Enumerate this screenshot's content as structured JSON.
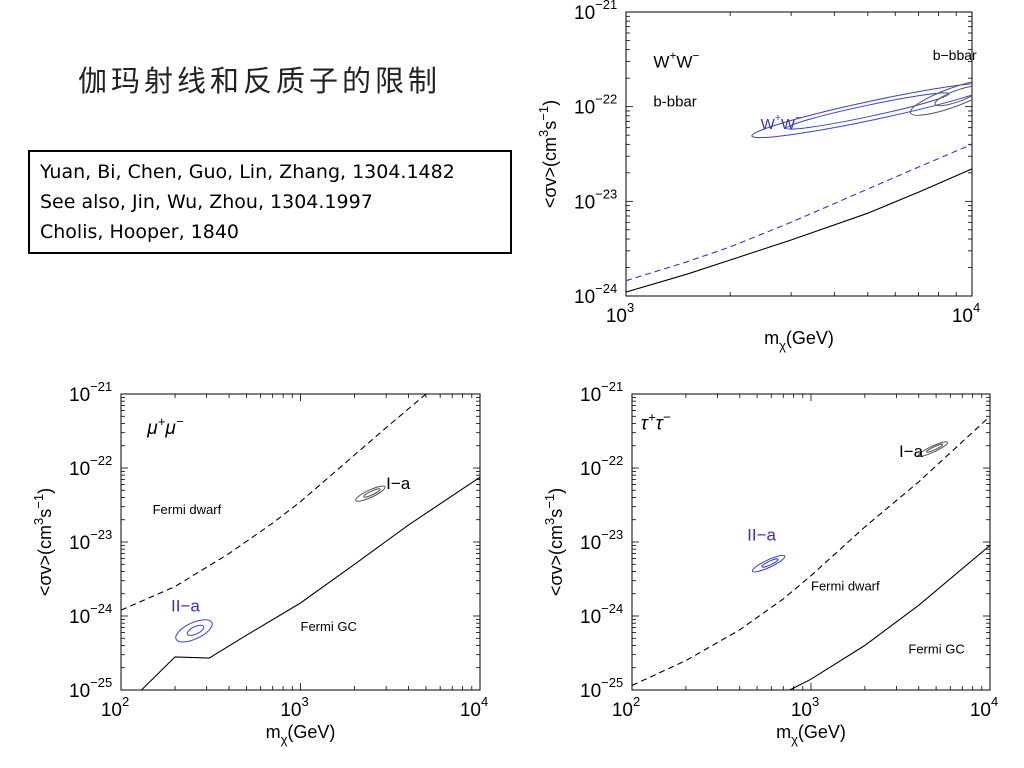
{
  "slide": {
    "title": "伽玛射线和反质子的限制",
    "references": [
      "Yuan, Bi, Chen, Guo, Lin, Zhang, 1304.1482",
      "See also, Jin, Wu, Zhou, 1304.1997",
      "Cholis, Hooper,  1840"
    ]
  },
  "chart_data": [
    {
      "id": "top",
      "type": "line",
      "xscale": "log",
      "yscale": "log",
      "xlim": [
        1000,
        10000
      ],
      "ylim": [
        1e-24,
        1e-21
      ],
      "xticks": [
        {
          "v": 1000,
          "base": "10",
          "exp": "3"
        },
        {
          "v": 10000,
          "base": "10",
          "exp": "4"
        }
      ],
      "yticks": [
        {
          "v": 1e-21,
          "base": "10",
          "exp": "−21"
        },
        {
          "v": 1e-22,
          "base": "10",
          "exp": "−22"
        },
        {
          "v": 1e-23,
          "base": "10",
          "exp": "−23"
        },
        {
          "v": 1e-24,
          "base": "10",
          "exp": "−24"
        }
      ],
      "xlabel": {
        "pre": "m",
        "sub": "χ",
        "post": "(GeV)"
      },
      "ylabel": {
        "pre": "<σv>(cm",
        "sup1": "3",
        "mid": "s",
        "sup2": "−1",
        "post": ")"
      },
      "lines": [
        {
          "style": "dashed",
          "color": "#3333dd",
          "x": [
            1000,
            1500,
            2000,
            3000,
            5000,
            7000,
            10000
          ],
          "y": [
            1.45e-24,
            2.3e-24,
            3.3e-24,
            6e-24,
            1.35e-23,
            2.3e-23,
            4e-23
          ]
        },
        {
          "style": "solid",
          "color": "#000000",
          "x": [
            1000,
            1500,
            2000,
            3000,
            5000,
            7000,
            10000
          ],
          "y": [
            1.1e-24,
            1.7e-24,
            2.4e-24,
            3.9e-24,
            7.5e-24,
            1.25e-23,
            2.2e-23
          ]
        }
      ],
      "contours": [
        {
          "color": "#3344cc",
          "cx": 5200,
          "cy": 9.2e-23,
          "rx": 0.36,
          "ry": 0.1,
          "angle": 12
        },
        {
          "color": "#3344cc",
          "cx": 5000,
          "cy": 9e-23,
          "rx": 0.24,
          "ry": 0.06,
          "angle": 12
        },
        {
          "color": "#555555",
          "cx": 8800,
          "cy": 1.25e-22,
          "rx": 0.13,
          "ry": 0.1,
          "angle": 20
        },
        {
          "color": "#555555",
          "cx": 9100,
          "cy": 1.3e-22,
          "rx": 0.07,
          "ry": 0.06,
          "angle": 20
        }
      ],
      "annotations": [
        {
          "text": "W",
          "sup": "+",
          "text2": "W",
          "sup2": "−",
          "color": "#000",
          "x": 1200,
          "y": 2.6e-22,
          "size": 17
        },
        {
          "text": "b-bbar",
          "color": "#000",
          "x": 1200,
          "y": 1e-22,
          "size": 15
        },
        {
          "text": "b−bbar",
          "color": "#000",
          "x": 7700,
          "y": 3.1e-22,
          "size": 14
        },
        {
          "text": "W",
          "sup": "+",
          "text2": "W",
          "sup2": "−",
          "color": "#3333cc",
          "x": 2450,
          "y": 5.8e-23,
          "size": 15
        }
      ]
    },
    {
      "id": "mumu",
      "type": "line",
      "xscale": "log",
      "yscale": "log",
      "xlim": [
        100,
        10000
      ],
      "ylim": [
        1e-25,
        1e-21
      ],
      "xticks": [
        {
          "v": 100,
          "base": "10",
          "exp": "2"
        },
        {
          "v": 1000,
          "base": "10",
          "exp": "3"
        },
        {
          "v": 10000,
          "base": "10",
          "exp": "4"
        }
      ],
      "yticks": [
        {
          "v": 1e-21,
          "base": "10",
          "exp": "−21"
        },
        {
          "v": 1e-22,
          "base": "10",
          "exp": "−22"
        },
        {
          "v": 1e-23,
          "base": "10",
          "exp": "−23"
        },
        {
          "v": 1e-24,
          "base": "10",
          "exp": "−24"
        },
        {
          "v": 1e-25,
          "base": "10",
          "exp": "−25"
        }
      ],
      "xlabel": {
        "pre": "m",
        "sub": "χ",
        "post": "(GeV)"
      },
      "ylabel": {
        "pre": "<σv>(cm",
        "sup1": "3",
        "mid": "s",
        "sup2": "−1",
        "post": ")"
      },
      "lines": [
        {
          "style": "dashed",
          "color": "#000000",
          "x": [
            100,
            200,
            400,
            700,
            1000,
            2000,
            3000,
            5000
          ],
          "y": [
            1.2e-24,
            2.5e-24,
            7e-24,
            1.8e-23,
            3.5e-23,
            1.5e-22,
            3.5e-22,
            1e-21
          ]
        },
        {
          "style": "solid",
          "color": "#000000",
          "x": [
            130,
            200,
            310,
            500,
            1000,
            2000,
            4000,
            10000
          ],
          "y": [
            1e-25,
            2.8e-25,
            2.7e-25,
            5.5e-25,
            1.5e-24,
            5e-24,
            1.7e-23,
            7.5e-23
          ]
        }
      ],
      "contours": [
        {
          "color": "#3344cc",
          "cx": 255,
          "cy": 6.3e-25,
          "rx": 0.11,
          "ry": 0.11,
          "angle": 25
        },
        {
          "color": "#3344cc",
          "cx": 260,
          "cy": 6.4e-25,
          "rx": 0.05,
          "ry": 0.05,
          "angle": 25
        },
        {
          "color": "#555555",
          "cx": 2450,
          "cy": 4.5e-23,
          "rx": 0.09,
          "ry": 0.05,
          "angle": 25
        },
        {
          "color": "#555555",
          "cx": 2500,
          "cy": 4.6e-23,
          "rx": 0.05,
          "ry": 0.025,
          "angle": 25
        }
      ],
      "annotations": [
        {
          "text": "μ",
          "sup": "+",
          "text2": "μ",
          "sup2": "−",
          "color": "#000",
          "x": 140,
          "y": 2.9e-22,
          "size": 19,
          "italic": true
        },
        {
          "text": "Fermi dwarf",
          "color": "#000",
          "x": 150,
          "y": 2.4e-23,
          "size": 13
        },
        {
          "text": "I−a",
          "color": "#000",
          "x": 3000,
          "y": 5.2e-23,
          "size": 17
        },
        {
          "text": "II−a",
          "color": "#3333cc",
          "x": 190,
          "y": 1.15e-24,
          "size": 17
        },
        {
          "text": "Fermi GC",
          "color": "#000",
          "x": 1000,
          "y": 6.3e-25,
          "size": 13
        }
      ]
    },
    {
      "id": "tautau",
      "type": "line",
      "xscale": "log",
      "yscale": "log",
      "xlim": [
        100,
        10000
      ],
      "ylim": [
        1e-25,
        1e-21
      ],
      "xticks": [
        {
          "v": 100,
          "base": "10",
          "exp": "2"
        },
        {
          "v": 1000,
          "base": "10",
          "exp": "3"
        },
        {
          "v": 10000,
          "base": "10",
          "exp": "4"
        }
      ],
      "yticks": [
        {
          "v": 1e-21,
          "base": "10",
          "exp": "−21"
        },
        {
          "v": 1e-22,
          "base": "10",
          "exp": "−22"
        },
        {
          "v": 1e-23,
          "base": "10",
          "exp": "−23"
        },
        {
          "v": 1e-24,
          "base": "10",
          "exp": "−24"
        },
        {
          "v": 1e-25,
          "base": "10",
          "exp": "−25"
        }
      ],
      "xlabel": {
        "pre": "m",
        "sub": "χ",
        "post": "(GeV)"
      },
      "ylabel": {
        "pre": "<σv>(cm",
        "sup1": "3",
        "mid": "s",
        "sup2": "−1",
        "post": ")"
      },
      "lines": [
        {
          "style": "dashed",
          "color": "#000000",
          "x": [
            100,
            200,
            400,
            700,
            1000,
            2000,
            4000,
            10000
          ],
          "y": [
            1.15e-25,
            2.5e-25,
            6.5e-25,
            1.7e-24,
            3.5e-24,
            1.6e-23,
            6.5e-23,
            5e-22
          ]
        },
        {
          "style": "solid",
          "color": "#000000",
          "x": [
            760,
            1000,
            2000,
            4000,
            10000
          ],
          "y": [
            1e-25,
            1.4e-25,
            4e-25,
            1.4e-24,
            9e-24
          ]
        }
      ],
      "contours": [
        {
          "color": "#3344cc",
          "cx": 580,
          "cy": 5.1e-24,
          "rx": 0.1,
          "ry": 0.05,
          "angle": 25
        },
        {
          "color": "#3344cc",
          "cx": 590,
          "cy": 5.2e-24,
          "rx": 0.05,
          "ry": 0.025,
          "angle": 25
        },
        {
          "color": "#555555",
          "cx": 4800,
          "cy": 1.8e-22,
          "rx": 0.09,
          "ry": 0.04,
          "angle": 25
        },
        {
          "color": "#555555",
          "cx": 4900,
          "cy": 1.85e-22,
          "rx": 0.05,
          "ry": 0.02,
          "angle": 25
        }
      ],
      "annotations": [
        {
          "text": "τ",
          "sup": "+",
          "text2": "τ",
          "sup2": "−",
          "color": "#000",
          "x": 112,
          "y": 3.3e-22,
          "size": 19,
          "italic": true
        },
        {
          "text": "I−a",
          "color": "#000",
          "x": 3100,
          "y": 1.4e-22,
          "size": 17
        },
        {
          "text": "II−a",
          "color": "#3333cc",
          "x": 440,
          "y": 1.05e-23,
          "size": 17
        },
        {
          "text": "Fermi dwarf",
          "color": "#000",
          "x": 1000,
          "y": 2.2e-24,
          "size": 13
        },
        {
          "text": "Fermi GC",
          "color": "#000",
          "x": 3500,
          "y": 3.1e-25,
          "size": 13
        }
      ]
    }
  ]
}
